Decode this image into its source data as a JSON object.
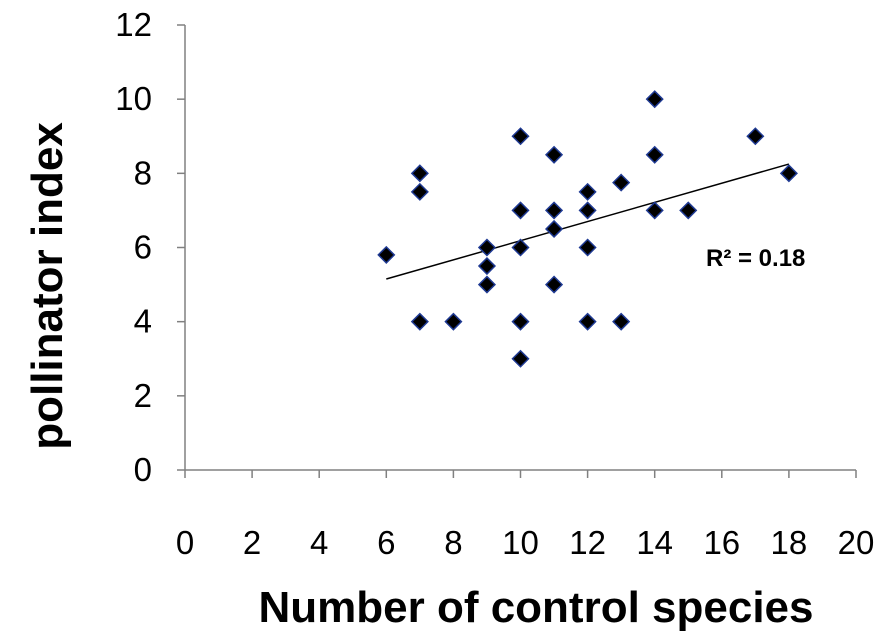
{
  "chart_data": {
    "type": "scatter",
    "title": "",
    "xlabel": "Number of control species",
    "ylabel": "pollinator index",
    "xlim": [
      0,
      20
    ],
    "ylim": [
      0,
      12
    ],
    "x_ticks": [
      0,
      2,
      4,
      6,
      8,
      10,
      12,
      14,
      16,
      18,
      20
    ],
    "y_ticks": [
      0,
      2,
      4,
      6,
      8,
      10,
      12
    ],
    "grid": false,
    "legend": "none",
    "marker": "diamond",
    "colors": {
      "marker_fill": "#000000",
      "marker_edge": "#1f3a93",
      "trendline": "#000000",
      "axis": "#808080"
    },
    "points": [
      {
        "x": 6,
        "y": 5.8
      },
      {
        "x": 7,
        "y": 8
      },
      {
        "x": 7,
        "y": 7.5
      },
      {
        "x": 7,
        "y": 4
      },
      {
        "x": 8,
        "y": 4
      },
      {
        "x": 9,
        "y": 6
      },
      {
        "x": 9,
        "y": 5.5
      },
      {
        "x": 9,
        "y": 5
      },
      {
        "x": 10,
        "y": 9
      },
      {
        "x": 10,
        "y": 7
      },
      {
        "x": 10,
        "y": 6
      },
      {
        "x": 10,
        "y": 4
      },
      {
        "x": 10,
        "y": 3
      },
      {
        "x": 11,
        "y": 8.5
      },
      {
        "x": 11,
        "y": 7
      },
      {
        "x": 11,
        "y": 6.5
      },
      {
        "x": 11,
        "y": 5
      },
      {
        "x": 12,
        "y": 7.5
      },
      {
        "x": 12,
        "y": 7
      },
      {
        "x": 12,
        "y": 6
      },
      {
        "x": 12,
        "y": 4
      },
      {
        "x": 13,
        "y": 7.75
      },
      {
        "x": 13,
        "y": 4
      },
      {
        "x": 14,
        "y": 10
      },
      {
        "x": 14,
        "y": 8.5
      },
      {
        "x": 14,
        "y": 7
      },
      {
        "x": 15,
        "y": 7
      },
      {
        "x": 17,
        "y": 9
      },
      {
        "x": 18,
        "y": 8
      }
    ],
    "trendline": {
      "x": [
        6,
        18
      ],
      "y": [
        5.15,
        8.25
      ]
    },
    "annotations": [
      {
        "text": "R² = 0.18"
      }
    ]
  }
}
